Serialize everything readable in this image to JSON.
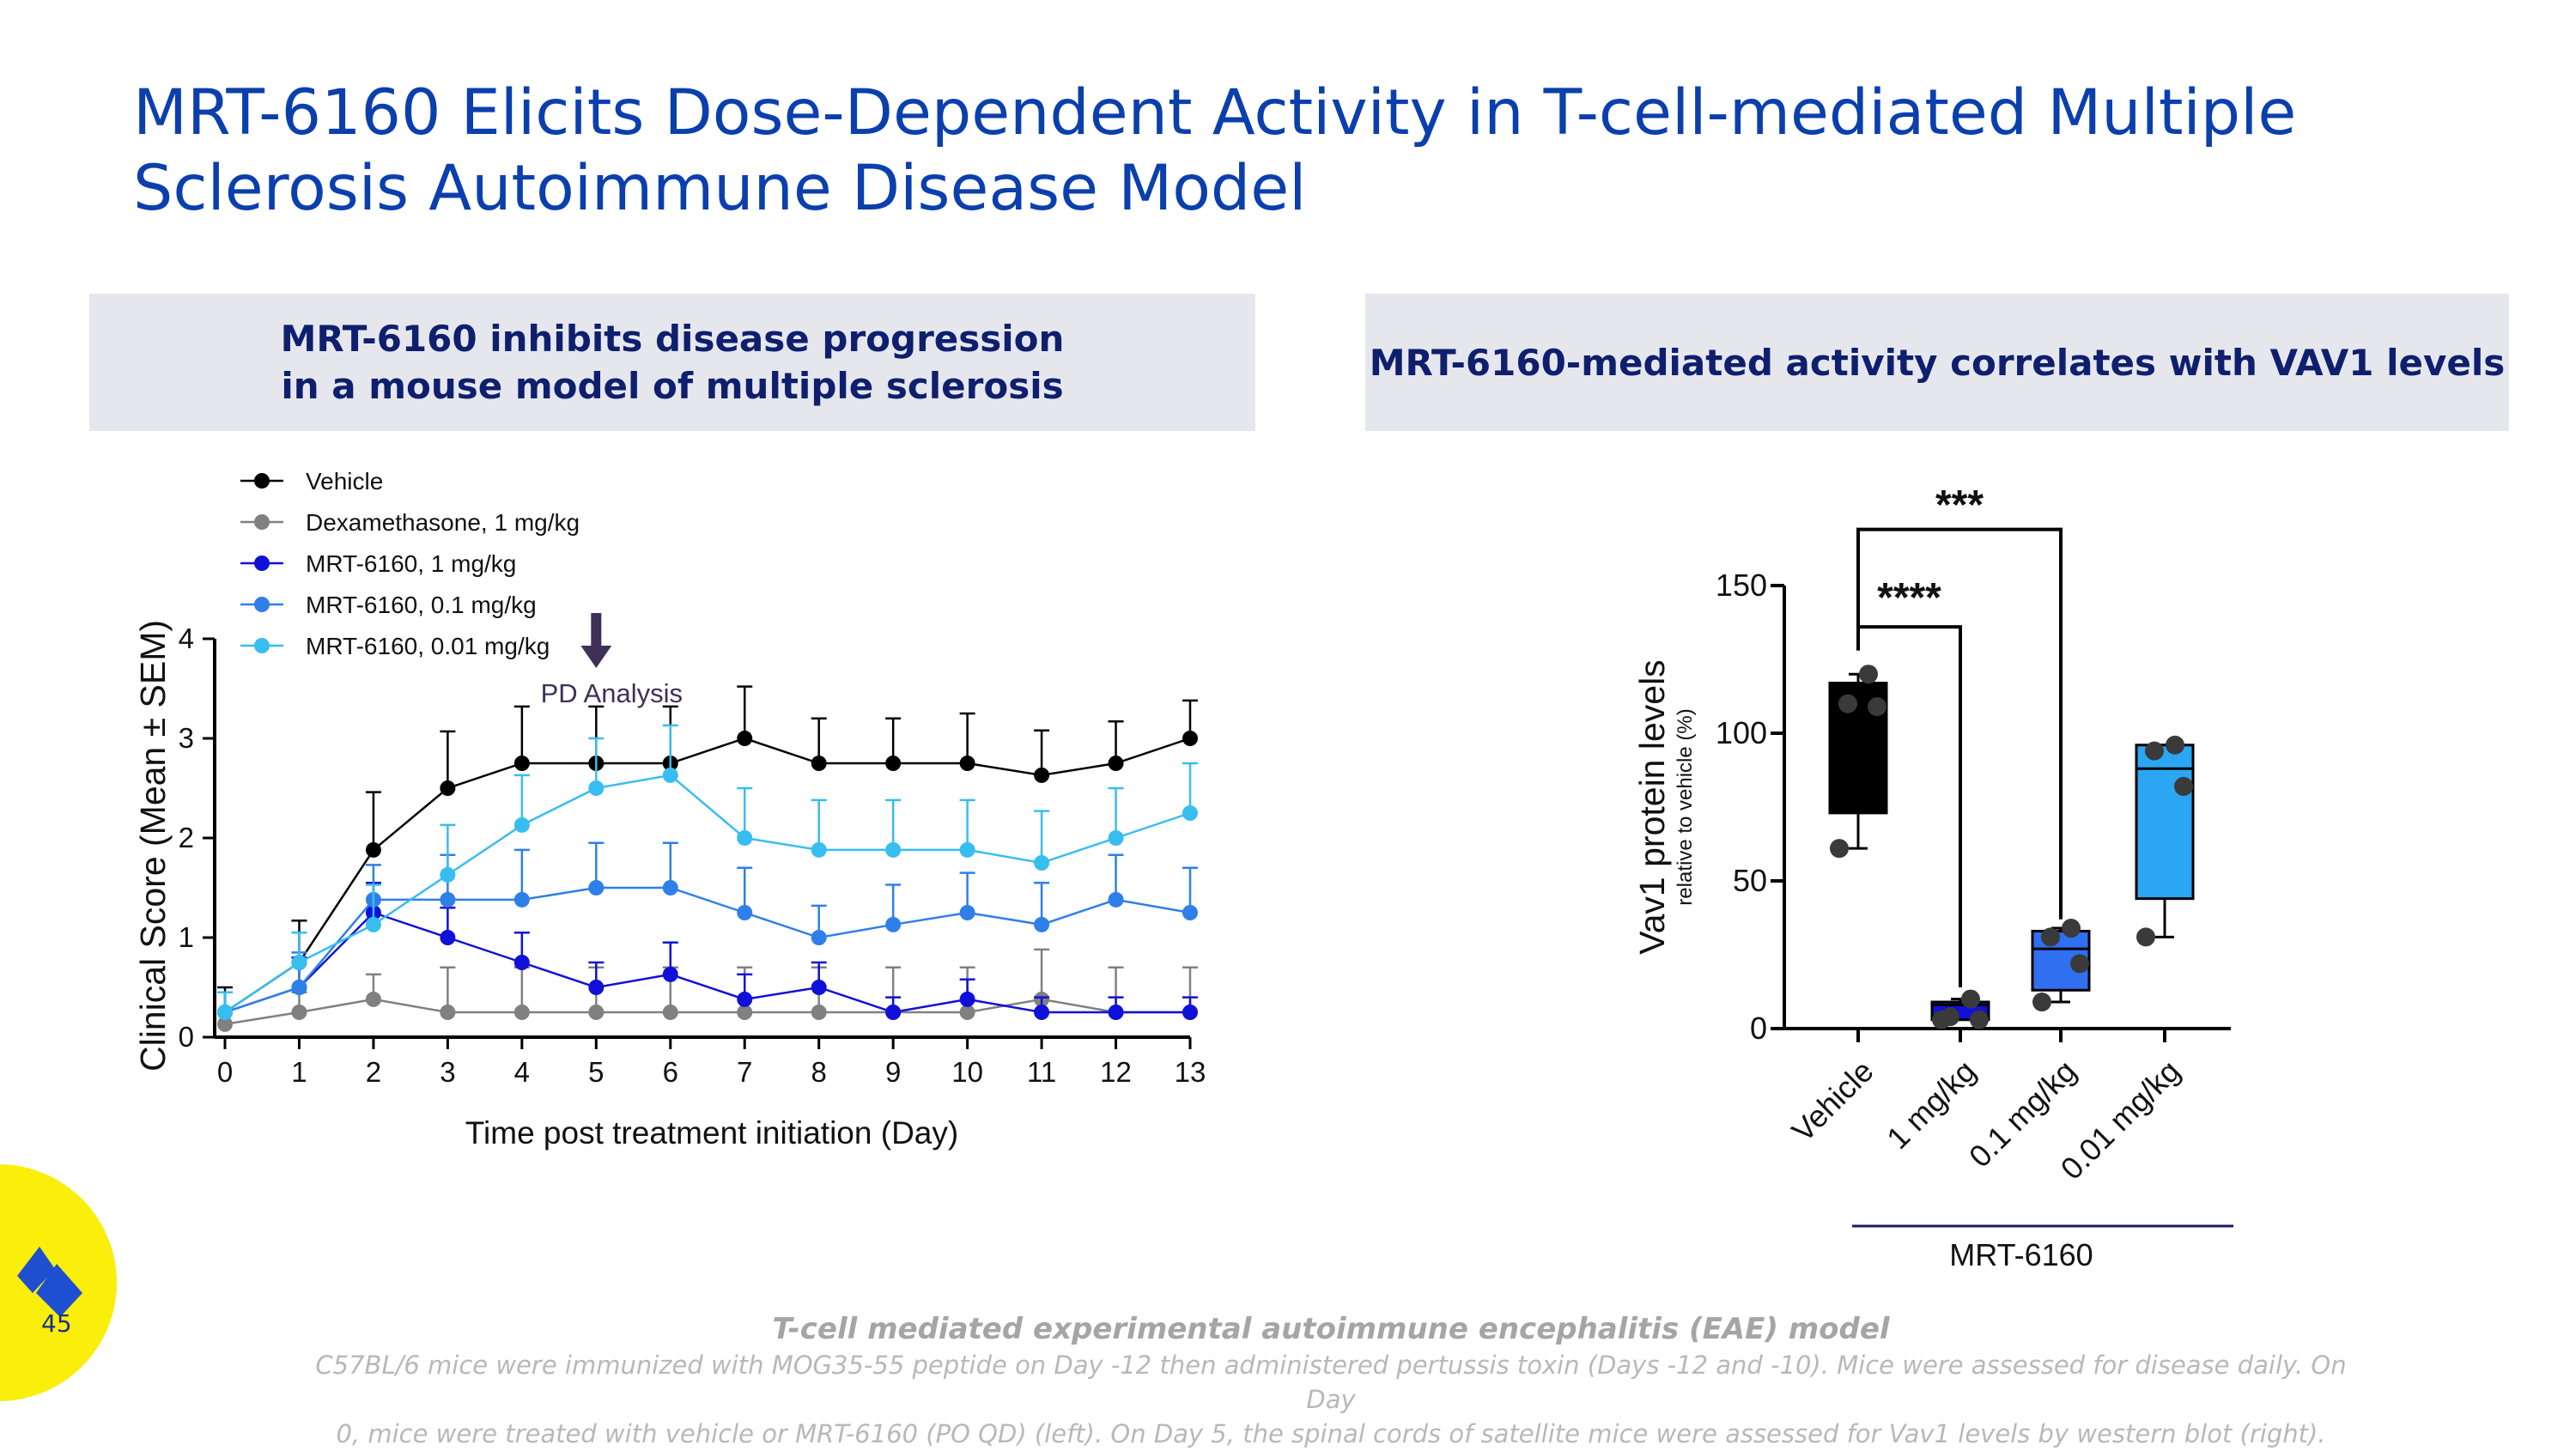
{
  "slide": {
    "title": "MRT-6160 Elicits Dose-Dependent Activity in T-cell-mediated Multiple Sclerosis Autoimmune Disease Model",
    "left_header_line1": "MRT-6160 inhibits disease progression",
    "left_header_line2": "in a mouse model of multiple sclerosis",
    "right_header": "MRT-6160-mediated activity correlates with VAV1 levels",
    "footer_title": "T-cell mediated experimental autoimmune encephalitis (EAE) model",
    "footer_line1": "C57BL/6 mice were immunized with MOG35-55 peptide on Day -12 then administered pertussis toxin (Days -12 and -10). Mice were assessed for disease daily. On Day",
    "footer_line2": "0, mice were treated with vehicle or MRT-6160 (PO QD) (left). On Day 5, the spinal cords of satellite mice were assessed for Vav1 levels by western blot (right).",
    "page_number": "45",
    "colors": {
      "title": "#0b3fae",
      "header_bg": "#e5e7ed",
      "header_text": "#0f1f6e",
      "logo_bg": "#f9ef0b",
      "logo_mark": "#1f4fd1"
    }
  },
  "chart_data": [
    {
      "type": "line",
      "xlabel": "Time post treatment initiation (Day)",
      "ylabel": "Clinical Score (Mean ± SEM)",
      "xlim": [
        0,
        13
      ],
      "ylim": [
        0,
        4
      ],
      "x": [
        0,
        1,
        2,
        3,
        4,
        5,
        6,
        7,
        8,
        9,
        10,
        11,
        12,
        13
      ],
      "yticks": [
        0,
        1,
        2,
        3,
        4
      ],
      "annotation": "PD Analysis",
      "annotation_x": 5,
      "grid": false,
      "legend_position": "top-left",
      "series": [
        {
          "name": "Vehicle",
          "color": "#000000",
          "values": [
            0.25,
            0.75,
            1.88,
            2.5,
            2.75,
            2.75,
            2.75,
            3.0,
            2.75,
            2.75,
            2.75,
            2.63,
            2.75,
            3.0
          ],
          "errors": [
            0.25,
            0.42,
            0.58,
            0.57,
            0.57,
            0.57,
            0.57,
            0.52,
            0.45,
            0.45,
            0.5,
            0.45,
            0.42,
            0.38
          ]
        },
        {
          "name": "Dexamethasone, 1 mg/kg",
          "color": "#808080",
          "values": [
            0.13,
            0.25,
            0.38,
            0.25,
            0.25,
            0.25,
            0.25,
            0.25,
            0.25,
            0.25,
            0.25,
            0.38,
            0.25,
            0.25
          ],
          "errors": [
            0.13,
            0.2,
            0.25,
            0.45,
            0.45,
            0.45,
            0.45,
            0.45,
            0.45,
            0.45,
            0.45,
            0.5,
            0.45,
            0.45
          ]
        },
        {
          "name": "MRT-6160, 1 mg/kg",
          "color": "#1010d8",
          "values": [
            0.25,
            0.5,
            1.25,
            1.0,
            0.75,
            0.5,
            0.63,
            0.38,
            0.5,
            0.25,
            0.38,
            0.25,
            0.25,
            0.25
          ],
          "errors": [
            0.2,
            0.3,
            0.3,
            0.3,
            0.3,
            0.25,
            0.32,
            0.25,
            0.25,
            0.15,
            0.2,
            0.15,
            0.15,
            0.15
          ]
        },
        {
          "name": "MRT-6160, 0.1 mg/kg",
          "color": "#2f7fe8",
          "values": [
            0.25,
            0.5,
            1.38,
            1.38,
            1.38,
            1.5,
            1.5,
            1.25,
            1.0,
            1.13,
            1.25,
            1.13,
            1.38,
            1.25
          ],
          "errors": [
            0.2,
            0.35,
            0.35,
            0.45,
            0.5,
            0.45,
            0.45,
            0.45,
            0.32,
            0.4,
            0.4,
            0.42,
            0.45,
            0.45
          ]
        },
        {
          "name": "MRT-6160, 0.01 mg/kg",
          "color": "#38bdf0",
          "values": [
            0.25,
            0.75,
            1.13,
            1.63,
            2.13,
            2.5,
            2.63,
            2.0,
            1.88,
            1.88,
            1.88,
            1.75,
            2.0,
            2.25
          ],
          "errors": [
            0.2,
            0.3,
            0.4,
            0.5,
            0.5,
            0.5,
            0.5,
            0.5,
            0.5,
            0.5,
            0.5,
            0.52,
            0.5,
            0.5
          ]
        }
      ]
    },
    {
      "type": "box",
      "ylabel": "Vav1 protein levels",
      "ylabel_sub": "relative to vehicle (%)",
      "ylim": [
        0,
        150
      ],
      "yticks": [
        0,
        50,
        100,
        150
      ],
      "categories": [
        "Vehicle",
        "1 mg/kg",
        "0.1 mg/kg",
        "0.01 mg/kg"
      ],
      "group_label": "MRT-6160",
      "group_categories": [
        "1 mg/kg",
        "0.1 mg/kg",
        "0.01 mg/kg"
      ],
      "boxes": [
        {
          "name": "Vehicle",
          "color": "#000000",
          "min": 61,
          "q1": 73,
          "median": 109,
          "q3": 117,
          "max": 120,
          "points": [
            61,
            109,
            110,
            120
          ]
        },
        {
          "name": "1 mg/kg",
          "color": "#1010d8",
          "min": 3,
          "q1": 3,
          "median": 8,
          "q3": 9,
          "max": 10,
          "points": [
            3,
            3,
            4,
            10
          ]
        },
        {
          "name": "0.1 mg/kg",
          "color": "#2f6ff0",
          "min": 9,
          "q1": 13,
          "median": 27,
          "q3": 33,
          "max": 34,
          "points": [
            9,
            22,
            31,
            34
          ]
        },
        {
          "name": "0.01 mg/kg",
          "color": "#2ba6f2",
          "min": 31,
          "q1": 44,
          "median": 88,
          "q3": 96,
          "max": 96,
          "points": [
            31,
            82,
            94,
            96
          ]
        }
      ],
      "significance": [
        {
          "from": "Vehicle",
          "to": "1 mg/kg",
          "label": "****"
        },
        {
          "from": "Vehicle",
          "to": "0.1 mg/kg",
          "label": "***"
        }
      ]
    }
  ]
}
